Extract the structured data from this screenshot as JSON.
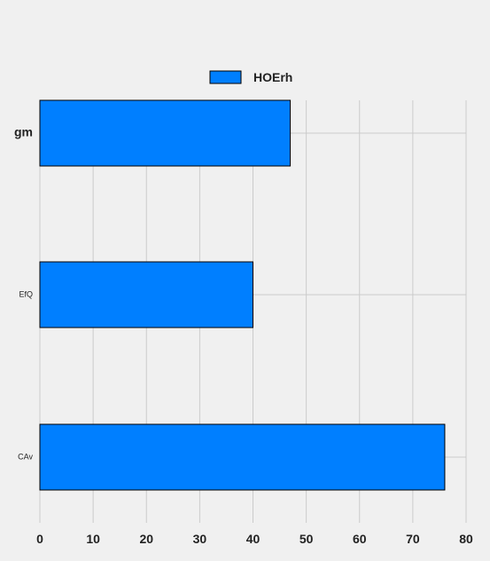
{
  "chart_data": {
    "type": "bar",
    "orientation": "horizontal",
    "categories": [
      "gm",
      "EfQ",
      "CAv"
    ],
    "series": [
      {
        "name": "HOErh",
        "values": [
          47,
          40,
          76
        ]
      }
    ],
    "xlim": [
      0,
      80
    ],
    "xticks": [
      "0",
      "10",
      "20",
      "30",
      "40",
      "50",
      "60",
      "70",
      "80"
    ],
    "grid": true,
    "legend_placement": "top-center",
    "colors": {
      "bar": "#007fff",
      "bar_edge": "#000000",
      "background": "#f0f0f0",
      "grid": "#cbcbcb",
      "text": "#222222"
    }
  }
}
